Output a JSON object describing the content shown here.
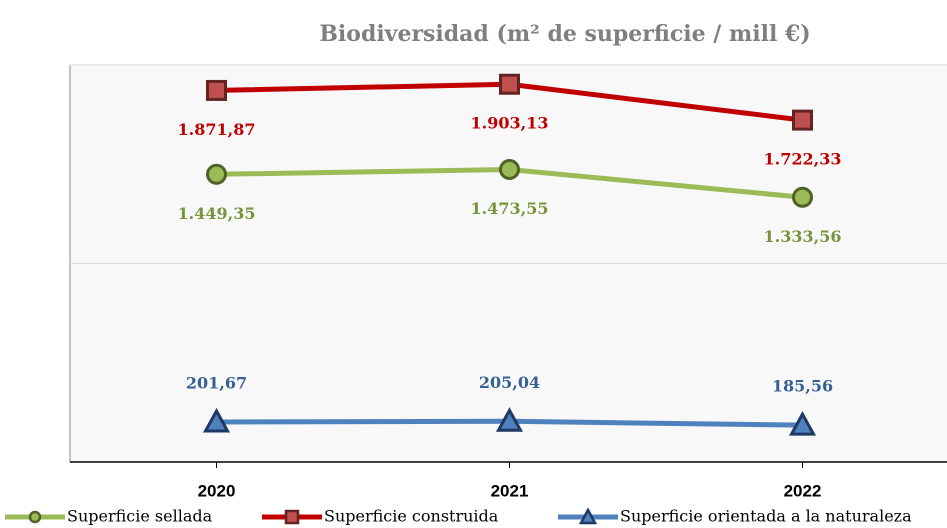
{
  "chart_data": {
    "type": "line",
    "title": "Biodiversidad (m² de superficie / mill €)",
    "categories": [
      "2020",
      "2021",
      "2022"
    ],
    "ylim": [
      0,
      2000
    ],
    "yticks": [
      0,
      1000,
      2000
    ],
    "grid": true,
    "show_ytick_labels": false,
    "legend": "bottom",
    "series": [
      {
        "name": "Superficie sellada",
        "color": "#9bbb59",
        "marker": "circle",
        "marker_edge": "#4f6228",
        "label_color": "#77933c",
        "label_position": "below",
        "values": [
          1449.35,
          1473.55,
          1333.56
        ],
        "value_labels": [
          "1.449,35",
          "1.473,55",
          "1.333,56"
        ]
      },
      {
        "name": "Superficie construida",
        "color": "#c00000",
        "marker": "square",
        "marker_edge": "#632523",
        "marker_fill": "#c0504d",
        "label_color": "#c00000",
        "label_position": "below",
        "values": [
          1871.87,
          1903.13,
          1722.33
        ],
        "value_labels": [
          "1.871,87",
          "1.903,13",
          "1.722,33"
        ]
      },
      {
        "name": "Superficie orientada a la naturaleza",
        "color": "#4f81bd",
        "marker": "triangle",
        "marker_edge": "#1f3864",
        "label_color": "#376092",
        "label_position": "above",
        "values": [
          201.67,
          205.04,
          185.56
        ],
        "value_labels": [
          "201,67",
          "205,04",
          "185,56"
        ]
      }
    ]
  }
}
